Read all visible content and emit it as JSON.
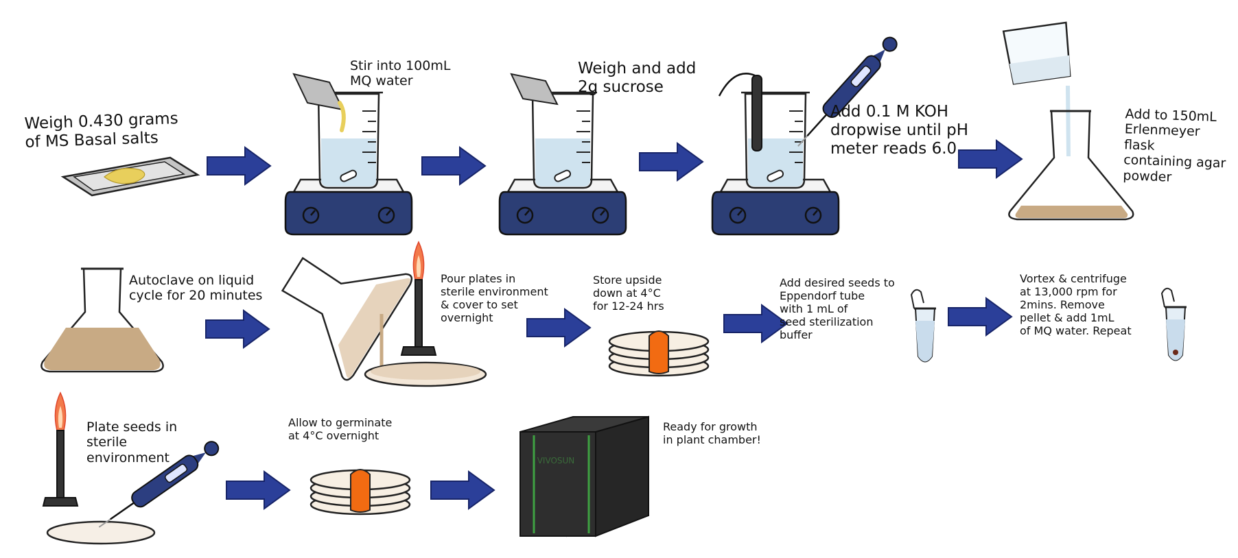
{
  "colors": {
    "arrow": "#2b3f99",
    "arrow_outline": "#172468",
    "stir_plate": "#2c3e75",
    "liquid_water": "#cfe3ef",
    "agar_medium": "#c8aa84",
    "salt": "#e8cf5c",
    "foil": "#bfbfbf",
    "plate_band": "#f26b12",
    "flame": "#f27a4b",
    "chamber": "#2e2e2e",
    "chamber_stripe": "#3fa142",
    "pipette": "#2c3e80"
  },
  "chamber_brand": "VIVOSUN",
  "steps": [
    {
      "id": "1",
      "text": "Weigh 0.430 grams\nof MS Basal salts"
    },
    {
      "id": "2",
      "text": "Stir into 100mL\nMQ water"
    },
    {
      "id": "3",
      "text": "Weigh and add\n2g sucrose"
    },
    {
      "id": "4",
      "text": "Add 0.1 M KOH\ndropwise until pH\nmeter reads 6.0"
    },
    {
      "id": "5",
      "text": "Add to 150mL\nErlenmeyer flask\ncontaining agar\npowder"
    },
    {
      "id": "6",
      "text": "Autoclave on liquid\ncycle for 20 minutes"
    },
    {
      "id": "7",
      "text": "Pour plates in\nsterile environment\n& cover to set\novernight"
    },
    {
      "id": "8",
      "text": "Store upside\ndown at 4°C\nfor 12-24 hrs"
    },
    {
      "id": "9",
      "text": "Add desired seeds to\nEppendorf tube\nwith 1 mL of\nseed sterilization\nbuffer"
    },
    {
      "id": "10",
      "text": "Vortex & centrifuge\nat 13,000 rpm for\n2mins. Remove\npellet & add 1mL\nof MQ water. Repeat"
    },
    {
      "id": "11",
      "text": "Plate seeds in\nsterile\nenvironment"
    },
    {
      "id": "12",
      "text": "Allow to germinate\nat 4°C overnight"
    },
    {
      "id": "13",
      "text": "Ready for growth\nin plant chamber!"
    }
  ]
}
